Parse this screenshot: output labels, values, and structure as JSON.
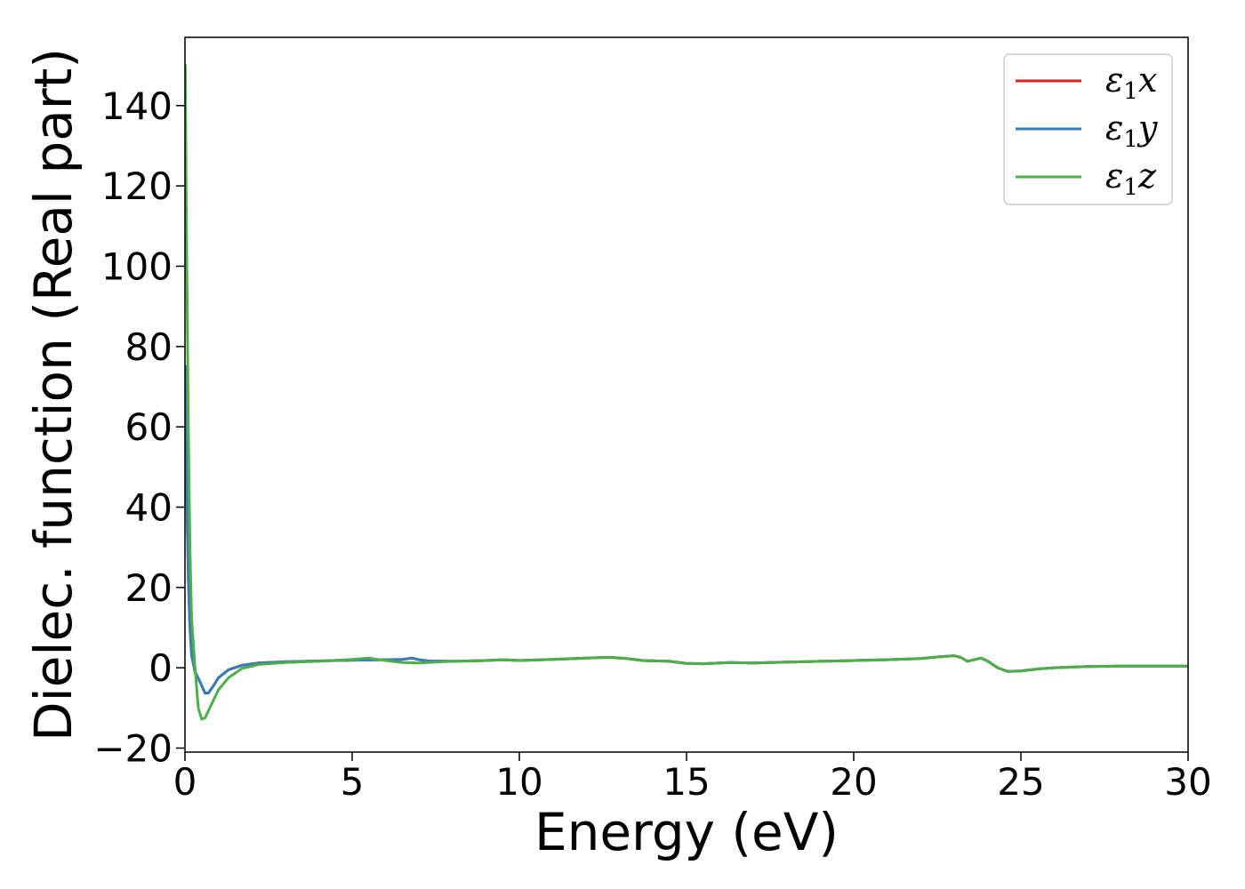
{
  "chart_data": {
    "type": "line",
    "title": "",
    "xlabel": "Energy (eV)",
    "ylabel": "Dielec. function (Real part)",
    "xlim": [
      0,
      30
    ],
    "ylim": [
      -21,
      157
    ],
    "x_ticks": [
      0,
      5,
      10,
      15,
      20,
      25,
      30
    ],
    "y_ticks": [
      -20,
      0,
      20,
      40,
      60,
      80,
      100,
      120,
      140
    ],
    "x_tick_labels": [
      "0",
      "5",
      "10",
      "15",
      "20",
      "25",
      "30"
    ],
    "y_tick_labels": [
      "−20",
      "0",
      "20",
      "40",
      "60",
      "80",
      "100",
      "120",
      "140"
    ],
    "grid": false,
    "legend_position": "top-right",
    "series": [
      {
        "name": "ε₁x",
        "legend_base": "ε",
        "legend_sub": "1",
        "legend_var": "x",
        "color": "#e41a1c",
        "points": [
          [
            0.02,
            75
          ],
          [
            0.05,
            45
          ],
          [
            0.1,
            22
          ],
          [
            0.15,
            10
          ],
          [
            0.2,
            3
          ],
          [
            0.3,
            -1
          ],
          [
            0.45,
            -3.5
          ],
          [
            0.6,
            -6.3
          ],
          [
            0.7,
            -6.3
          ],
          [
            0.85,
            -4.5
          ],
          [
            1.0,
            -2.5
          ],
          [
            1.3,
            -0.5
          ],
          [
            1.7,
            0.6
          ],
          [
            2.2,
            1.2
          ],
          [
            3.0,
            1.5
          ],
          [
            4.0,
            1.7
          ],
          [
            5.0,
            1.9
          ],
          [
            6.0,
            2.0
          ],
          [
            6.5,
            2.1
          ],
          [
            6.8,
            2.4
          ],
          [
            7.0,
            2.0
          ],
          [
            7.3,
            1.7
          ],
          [
            8.0,
            1.6
          ],
          [
            9.0,
            1.8
          ],
          [
            9.5,
            2.0
          ],
          [
            10.0,
            1.8
          ],
          [
            11.0,
            2.1
          ],
          [
            12.0,
            2.4
          ],
          [
            12.7,
            2.6
          ],
          [
            13.2,
            2.3
          ],
          [
            13.7,
            1.8
          ],
          [
            14.5,
            1.6
          ],
          [
            15.0,
            1.1
          ],
          [
            15.5,
            1.0
          ],
          [
            16.3,
            1.3
          ],
          [
            17.0,
            1.2
          ],
          [
            18.0,
            1.4
          ],
          [
            19.0,
            1.6
          ],
          [
            20.0,
            1.8
          ],
          [
            21.0,
            2.0
          ],
          [
            22.0,
            2.3
          ],
          [
            22.5,
            2.7
          ],
          [
            23.0,
            3.0
          ],
          [
            23.2,
            2.6
          ],
          [
            23.4,
            1.6
          ],
          [
            23.6,
            2.0
          ],
          [
            23.8,
            2.4
          ],
          [
            24.0,
            1.7
          ],
          [
            24.3,
            0.0
          ],
          [
            24.6,
            -0.9
          ],
          [
            25.0,
            -0.8
          ],
          [
            25.5,
            -0.3
          ],
          [
            26.0,
            0.0
          ],
          [
            27.0,
            0.3
          ],
          [
            28.0,
            0.4
          ],
          [
            29.0,
            0.4
          ],
          [
            30.0,
            0.4
          ]
        ]
      },
      {
        "name": "ε₁y",
        "legend_base": "ε",
        "legend_sub": "1",
        "legend_var": "y",
        "color": "#377eb8",
        "points": [
          [
            0.02,
            75
          ],
          [
            0.05,
            45
          ],
          [
            0.1,
            22
          ],
          [
            0.15,
            10
          ],
          [
            0.2,
            3
          ],
          [
            0.3,
            -1
          ],
          [
            0.45,
            -3.5
          ],
          [
            0.6,
            -6.3
          ],
          [
            0.7,
            -6.3
          ],
          [
            0.85,
            -4.5
          ],
          [
            1.0,
            -2.5
          ],
          [
            1.3,
            -0.5
          ],
          [
            1.7,
            0.6
          ],
          [
            2.2,
            1.2
          ],
          [
            3.0,
            1.5
          ],
          [
            4.0,
            1.7
          ],
          [
            5.0,
            1.9
          ],
          [
            6.0,
            2.0
          ],
          [
            6.5,
            2.1
          ],
          [
            6.8,
            2.4
          ],
          [
            7.0,
            2.0
          ],
          [
            7.3,
            1.7
          ],
          [
            8.0,
            1.6
          ],
          [
            9.0,
            1.8
          ],
          [
            9.5,
            2.0
          ],
          [
            10.0,
            1.8
          ],
          [
            11.0,
            2.1
          ],
          [
            12.0,
            2.4
          ],
          [
            12.7,
            2.6
          ],
          [
            13.2,
            2.3
          ],
          [
            13.7,
            1.8
          ],
          [
            14.5,
            1.6
          ],
          [
            15.0,
            1.1
          ],
          [
            15.5,
            1.0
          ],
          [
            16.3,
            1.3
          ],
          [
            17.0,
            1.2
          ],
          [
            18.0,
            1.4
          ],
          [
            19.0,
            1.6
          ],
          [
            20.0,
            1.8
          ],
          [
            21.0,
            2.0
          ],
          [
            22.0,
            2.3
          ],
          [
            22.5,
            2.7
          ],
          [
            23.0,
            3.0
          ],
          [
            23.2,
            2.6
          ],
          [
            23.4,
            1.6
          ],
          [
            23.6,
            2.0
          ],
          [
            23.8,
            2.4
          ],
          [
            24.0,
            1.7
          ],
          [
            24.3,
            0.0
          ],
          [
            24.6,
            -0.9
          ],
          [
            25.0,
            -0.8
          ],
          [
            25.5,
            -0.3
          ],
          [
            26.0,
            0.0
          ],
          [
            27.0,
            0.3
          ],
          [
            28.0,
            0.4
          ],
          [
            29.0,
            0.4
          ],
          [
            30.0,
            0.4
          ]
        ]
      },
      {
        "name": "ε₁z",
        "legend_base": "ε",
        "legend_sub": "1",
        "legend_var": "z",
        "color": "#4daf4a",
        "points": [
          [
            0.01,
            150
          ],
          [
            0.03,
            125
          ],
          [
            0.06,
            95
          ],
          [
            0.1,
            60
          ],
          [
            0.15,
            30
          ],
          [
            0.2,
            12
          ],
          [
            0.3,
            0
          ],
          [
            0.4,
            -10
          ],
          [
            0.5,
            -12.8
          ],
          [
            0.6,
            -12.5
          ],
          [
            0.8,
            -9
          ],
          [
            1.0,
            -5.5
          ],
          [
            1.3,
            -2.5
          ],
          [
            1.7,
            -0.2
          ],
          [
            2.2,
            0.8
          ],
          [
            3.0,
            1.3
          ],
          [
            4.0,
            1.6
          ],
          [
            5.0,
            2.1
          ],
          [
            5.5,
            2.4
          ],
          [
            6.0,
            1.8
          ],
          [
            6.5,
            1.3
          ],
          [
            7.0,
            1.2
          ],
          [
            7.5,
            1.4
          ],
          [
            8.0,
            1.6
          ],
          [
            9.0,
            1.8
          ],
          [
            9.5,
            2.0
          ],
          [
            10.0,
            1.8
          ],
          [
            11.0,
            2.1
          ],
          [
            12.0,
            2.4
          ],
          [
            12.7,
            2.6
          ],
          [
            13.2,
            2.3
          ],
          [
            13.7,
            1.8
          ],
          [
            14.5,
            1.6
          ],
          [
            15.0,
            1.1
          ],
          [
            15.5,
            1.0
          ],
          [
            16.3,
            1.3
          ],
          [
            17.0,
            1.2
          ],
          [
            18.0,
            1.4
          ],
          [
            19.0,
            1.6
          ],
          [
            20.0,
            1.8
          ],
          [
            21.0,
            2.0
          ],
          [
            22.0,
            2.3
          ],
          [
            22.5,
            2.7
          ],
          [
            23.0,
            3.0
          ],
          [
            23.2,
            2.6
          ],
          [
            23.4,
            1.6
          ],
          [
            23.6,
            2.0
          ],
          [
            23.8,
            2.4
          ],
          [
            24.0,
            1.7
          ],
          [
            24.3,
            0.0
          ],
          [
            24.6,
            -0.9
          ],
          [
            25.0,
            -0.8
          ],
          [
            25.5,
            -0.3
          ],
          [
            26.0,
            0.0
          ],
          [
            27.0,
            0.3
          ],
          [
            28.0,
            0.4
          ],
          [
            29.0,
            0.4
          ],
          [
            30.0,
            0.4
          ]
        ]
      }
    ]
  }
}
